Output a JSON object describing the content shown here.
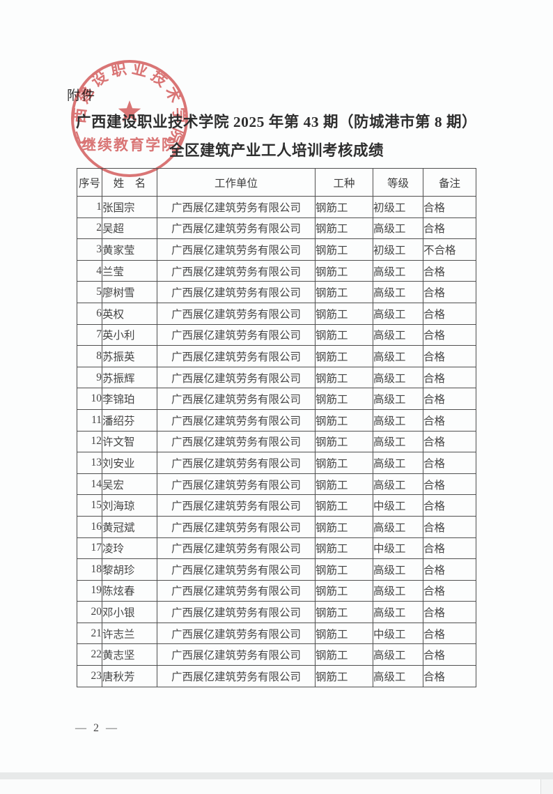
{
  "page": {
    "attachment_label": "附件",
    "title_line1": "广西建设职业技术学院 2025 年第 43 期（防城港市第 8 期）",
    "title_line2": "全区建筑产业工人培训考核成绩",
    "page_number": "— 2 —"
  },
  "stamp": {
    "arc_text": "广西建设职业技术学院",
    "bottom_text": "继续教育学院",
    "star_icon": "star-icon",
    "seal_red": "#d45757"
  },
  "table": {
    "headers": [
      "序号",
      "姓　名",
      "工作单位",
      "工种",
      "等级",
      "备注"
    ],
    "header_keys": [
      "index",
      "name",
      "employer",
      "trade",
      "grade",
      "remark"
    ],
    "rows": [
      [
        "1",
        "张国宗",
        "广西展亿建筑劳务有限公司",
        "钢筋工",
        "初级工",
        "合格"
      ],
      [
        "2",
        "吴超",
        "广西展亿建筑劳务有限公司",
        "钢筋工",
        "高级工",
        "合格"
      ],
      [
        "3",
        "黄家莹",
        "广西展亿建筑劳务有限公司",
        "钢筋工",
        "初级工",
        "不合格"
      ],
      [
        "4",
        "兰莹",
        "广西展亿建筑劳务有限公司",
        "钢筋工",
        "高级工",
        "合格"
      ],
      [
        "5",
        "廖树雪",
        "广西展亿建筑劳务有限公司",
        "钢筋工",
        "高级工",
        "合格"
      ],
      [
        "6",
        "英权",
        "广西展亿建筑劳务有限公司",
        "钢筋工",
        "高级工",
        "合格"
      ],
      [
        "7",
        "英小利",
        "广西展亿建筑劳务有限公司",
        "钢筋工",
        "高级工",
        "合格"
      ],
      [
        "8",
        "苏振英",
        "广西展亿建筑劳务有限公司",
        "钢筋工",
        "高级工",
        "合格"
      ],
      [
        "9",
        "苏振辉",
        "广西展亿建筑劳务有限公司",
        "钢筋工",
        "高级工",
        "合格"
      ],
      [
        "10",
        "李锦珀",
        "广西展亿建筑劳务有限公司",
        "钢筋工",
        "高级工",
        "合格"
      ],
      [
        "11",
        "潘绍芬",
        "广西展亿建筑劳务有限公司",
        "钢筋工",
        "高级工",
        "合格"
      ],
      [
        "12",
        "许文智",
        "广西展亿建筑劳务有限公司",
        "钢筋工",
        "高级工",
        "合格"
      ],
      [
        "13",
        "刘安业",
        "广西展亿建筑劳务有限公司",
        "钢筋工",
        "高级工",
        "合格"
      ],
      [
        "14",
        "吴宏",
        "广西展亿建筑劳务有限公司",
        "钢筋工",
        "高级工",
        "合格"
      ],
      [
        "15",
        "刘海琼",
        "广西展亿建筑劳务有限公司",
        "钢筋工",
        "中级工",
        "合格"
      ],
      [
        "16",
        "黄冠斌",
        "广西展亿建筑劳务有限公司",
        "钢筋工",
        "高级工",
        "合格"
      ],
      [
        "17",
        "凌玲",
        "广西展亿建筑劳务有限公司",
        "钢筋工",
        "中级工",
        "合格"
      ],
      [
        "18",
        "黎胡珍",
        "广西展亿建筑劳务有限公司",
        "钢筋工",
        "高级工",
        "合格"
      ],
      [
        "19",
        "陈炫春",
        "广西展亿建筑劳务有限公司",
        "钢筋工",
        "高级工",
        "合格"
      ],
      [
        "20",
        "邓小银",
        "广西展亿建筑劳务有限公司",
        "钢筋工",
        "高级工",
        "合格"
      ],
      [
        "21",
        "许志兰",
        "广西展亿建筑劳务有限公司",
        "钢筋工",
        "中级工",
        "合格"
      ],
      [
        "22",
        "黄志坚",
        "广西展亿建筑劳务有限公司",
        "钢筋工",
        "高级工",
        "合格"
      ],
      [
        "23",
        "唐秋芳",
        "广西展亿建筑劳务有限公司",
        "钢筋工",
        "高级工",
        "合格"
      ]
    ]
  }
}
